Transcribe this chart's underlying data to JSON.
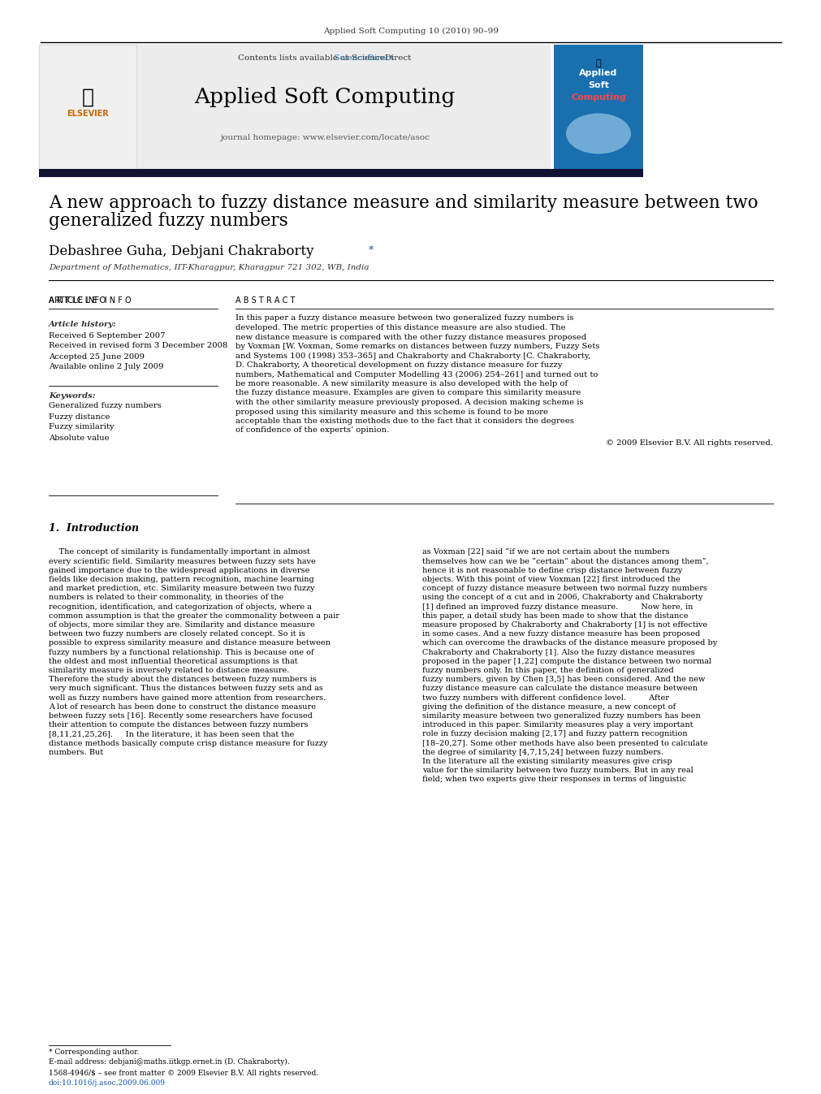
{
  "journal_info": "Applied Soft Computing 10 (2010) 90–99",
  "contents_line": "Contents lists available at ScienceDirect",
  "journal_name": "Applied Soft Computing",
  "journal_url": "journal homepage: www.elsevier.com/locate/asoc",
  "title": "A new approach to fuzzy distance measure and similarity measure between two\ngeneralized fuzzy numbers",
  "authors": "Debashree Guha, Debjani Chakraborty *",
  "affiliation": "Department of Mathematics, IIT-Kharagpur, Kharagpur 721 302, WB, India",
  "article_info_header": "ARTICLE INFO",
  "abstract_header": "ABSTRACT",
  "article_history_label": "Article history:",
  "article_history": [
    "Received 6 September 2007",
    "Received in revised form 3 December 2008",
    "Accepted 25 June 2009",
    "Available online 2 July 2009"
  ],
  "keywords_label": "Keywords:",
  "keywords": [
    "Generalized fuzzy numbers",
    "Fuzzy distance",
    "Fuzzy similarity",
    "Absolute value"
  ],
  "abstract_text": "In this paper a fuzzy distance measure between two generalized fuzzy numbers is developed. The metric properties of this distance measure are also studied. The new distance measure is compared with the other fuzzy distance measures proposed by Voxman [W. Voxman, Some remarks on distances between fuzzy numbers, Fuzzy Sets and Systems 100 (1998) 353–365] and Chakraborty and Chakraborty [C. Chakraborty, D. Chakraborty, A theoretical development on fuzzy distance measure for fuzzy numbers, Mathematical and Computer Modelling 43 (2006) 254–261] and turned out to be more reasonable. A new similarity measure is also developed with the help of the fuzzy distance measure. Examples are given to compare this similarity measure with the other similarity measure previously proposed. A decision making scheme is proposed using this similarity measure and this scheme is found to be more acceptable than the existing methods due to the fact that it considers the degrees of confidence of the experts’ opinion.",
  "copyright": "© 2009 Elsevier B.V. All rights reserved.",
  "section1_title": "1.  Introduction",
  "intro_col1_para1": "    The concept of similarity is fundamentally important in almost every scientific field. Similarity measures between fuzzy sets have gained importance due to the widespread applications in diverse fields like decision making, pattern recognition, machine learning and market prediction, etc. Similarity measure between two fuzzy numbers is related to their commonality, in theories of the recognition, identification, and categorization of objects, where a common assumption is that the greater the commonality between a pair of objects, more similar they are. Similarity and distance measure between two fuzzy numbers are closely related concept. So it is possible to express similarity measure and distance measure between fuzzy numbers by a functional relationship. This is because one of the oldest and most influential theoretical assumptions is that similarity measure is inversely related to distance measure. Therefore the study about the distances between fuzzy numbers is very much significant. Thus the distances between fuzzy sets and as well as fuzzy numbers have gained more attention from researchers.",
  "intro_col1_para2": "    A lot of research has been done to construct the distance measure between fuzzy sets [16]. Recently some researchers have focused their attention to compute the distances between fuzzy numbers [8,11,21,25,26].",
  "intro_col1_para3": "    In the literature, it has been seen that the distance methods basically compute crisp distance measure for fuzzy numbers. But",
  "intro_col2_para1": "as Voxman [22] said “if we are not certain about the numbers themselves how can we be “certain” about the distances among them”, hence it is not reasonable to define crisp distance between fuzzy objects. With this point of view Voxman [22] first introduced the concept of fuzzy distance measure between two normal fuzzy numbers using the concept of α cut and in 2006, Chakraborty and Chakraborty [1] defined an improved fuzzy distance measure.",
  "intro_col2_para2": "    Now here, in this paper, a detail study has been made to show that the distance measure proposed by Chakraborty and Chakraborty [1] is not effective in some cases. And a new fuzzy distance measure has been proposed which can overcome the drawbacks of the distance measure proposed by Chakraborty and Chakraborty [1]. Also the fuzzy distance measures proposed in the paper [1,22] compute the distance between two normal fuzzy numbers only. In this paper, the definition of generalized fuzzy numbers, given by Chen [3,5] has been considered. And the new fuzzy distance measure can calculate the distance measure between two fuzzy numbers with different confidence level.",
  "intro_col2_para3": "    After giving the definition of the distance measure, a new concept of similarity measure between two generalized fuzzy numbers has been introduced in this paper. Similarity measures play a very important role in fuzzy decision making [2,17] and fuzzy pattern recognition [18–20,27]. Some other methods have also been presented to calculate the degree of similarity [4,7,15,24] between fuzzy numbers.",
  "intro_col2_para4": "    In the literature all the existing similarity measures give crisp value for the similarity between two fuzzy numbers. But in any real field; when two experts give their responses in terms of linguistic",
  "footer_note": "* Corresponding author.",
  "footer_email": "E-mail address: debjani@maths.iitkgp.ernet.in (D. Chakraborty).",
  "footer_issn": "1568-4946/$ – see front matter © 2009 Elsevier B.V. All rights reserved.",
  "footer_doi": "doi:10.1016/j.asoc.2009.06.009",
  "bg_color": "#ffffff",
  "header_bg": "#e8e8e8",
  "dark_bar_color": "#1a1a2e",
  "blue_color": "#1a5276",
  "sd_link_color": "#2471a3",
  "section_heading_color": "#000000",
  "body_text_color": "#000000",
  "italic_color": "#333333"
}
